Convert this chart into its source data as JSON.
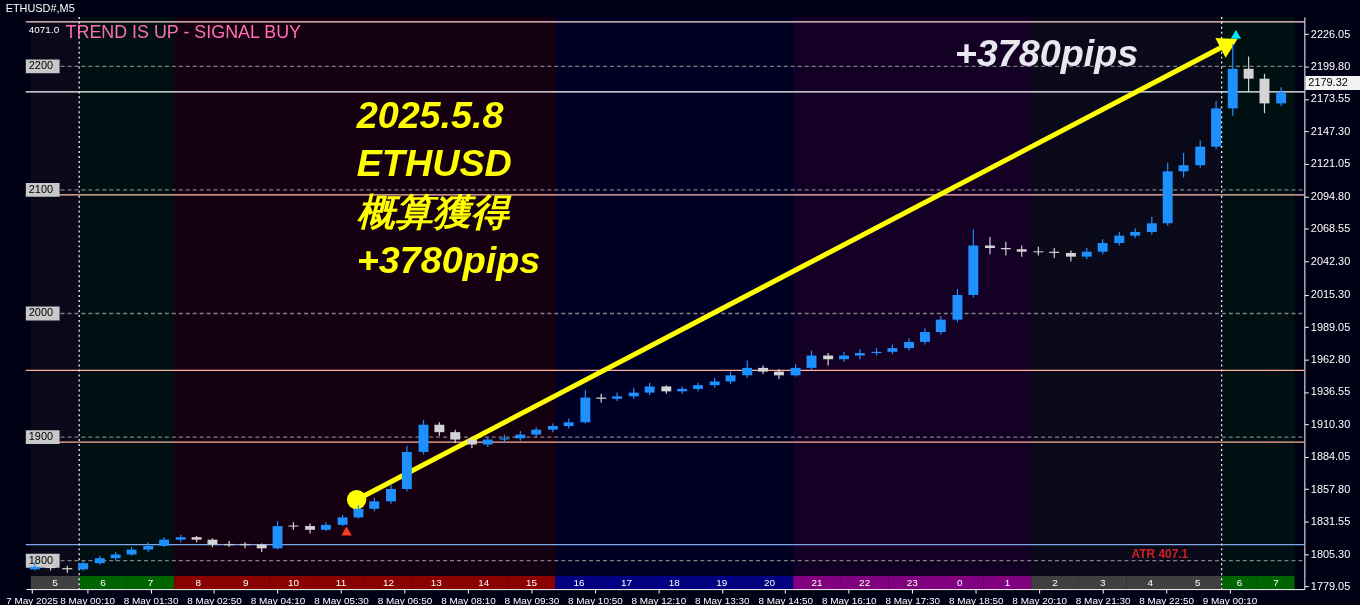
{
  "chart_data": {
    "type": "candlestick",
    "title": "ETHUSD#,M5",
    "x": [
      "2025-05-07T23:04",
      "2025-05-07T23:24",
      "2025-05-07T23:45",
      "2025-05-08T00:05",
      "2025-05-08T00:26",
      "2025-05-08T00:46",
      "2025-05-08T01:06",
      "2025-05-08T01:27",
      "2025-05-08T01:47",
      "2025-05-08T02:08",
      "2025-05-08T02:28",
      "2025-05-08T02:48",
      "2025-05-08T03:09",
      "2025-05-08T03:29",
      "2025-05-08T03:50",
      "2025-05-08T04:10",
      "2025-05-08T04:30",
      "2025-05-08T04:51",
      "2025-05-08T05:11",
      "2025-05-08T05:32",
      "2025-05-08T05:52",
      "2025-05-08T06:12",
      "2025-05-08T06:33",
      "2025-05-08T06:53",
      "2025-05-08T07:14",
      "2025-05-08T07:34",
      "2025-05-08T07:54",
      "2025-05-08T08:15",
      "2025-05-08T08:35",
      "2025-05-08T08:56",
      "2025-05-08T09:16",
      "2025-05-08T09:36",
      "2025-05-08T09:57",
      "2025-05-08T10:17",
      "2025-05-08T10:38",
      "2025-05-08T10:58",
      "2025-05-08T11:18",
      "2025-05-08T11:39",
      "2025-05-08T11:59",
      "2025-05-08T12:20",
      "2025-05-08T12:40",
      "2025-05-08T13:00",
      "2025-05-08T13:21",
      "2025-05-08T13:41",
      "2025-05-08T14:02",
      "2025-05-08T14:22",
      "2025-05-08T14:42",
      "2025-05-08T15:03",
      "2025-05-08T15:23",
      "2025-05-08T15:44",
      "2025-05-08T16:04",
      "2025-05-08T16:24",
      "2025-05-08T16:45",
      "2025-05-08T17:05",
      "2025-05-08T17:26",
      "2025-05-08T17:46",
      "2025-05-08T18:06",
      "2025-05-08T18:27",
      "2025-05-08T18:47",
      "2025-05-08T19:08",
      "2025-05-08T19:28",
      "2025-05-08T19:48",
      "2025-05-08T20:09",
      "2025-05-08T20:29",
      "2025-05-08T20:50",
      "2025-05-08T21:10",
      "2025-05-08T21:30",
      "2025-05-08T21:51",
      "2025-05-08T22:11",
      "2025-05-08T22:32",
      "2025-05-08T22:52",
      "2025-05-08T23:12",
      "2025-05-08T23:33",
      "2025-05-08T23:53",
      "2025-05-09T00:14",
      "2025-05-09T00:34",
      "2025-05-09T00:54",
      "2025-05-09T01:15"
    ],
    "ohlc": [
      [
        1793,
        1799,
        1792,
        1795
      ],
      [
        1795,
        1797,
        1792,
        1794
      ],
      [
        1794,
        1796,
        1790,
        1793
      ],
      [
        1793,
        1800,
        1792,
        1798
      ],
      [
        1798,
        1804,
        1797,
        1802
      ],
      [
        1802,
        1807,
        1800,
        1805
      ],
      [
        1805,
        1811,
        1804,
        1809
      ],
      [
        1809,
        1815,
        1807,
        1812
      ],
      [
        1812,
        1819,
        1811,
        1817
      ],
      [
        1817,
        1821,
        1815,
        1819
      ],
      [
        1819,
        1820,
        1815,
        1817
      ],
      [
        1817,
        1818,
        1811,
        1813
      ],
      [
        1813,
        1816,
        1811,
        1813
      ],
      [
        1813,
        1815,
        1810,
        1813
      ],
      [
        1813,
        1814,
        1807,
        1810
      ],
      [
        1810,
        1832,
        1809,
        1828
      ],
      [
        1828,
        1831,
        1825,
        1828
      ],
      [
        1828,
        1830,
        1822,
        1825
      ],
      [
        1825,
        1831,
        1824,
        1829
      ],
      [
        1829,
        1837,
        1828,
        1835
      ],
      [
        1835,
        1845,
        1834,
        1842
      ],
      [
        1842,
        1851,
        1840,
        1848
      ],
      [
        1848,
        1862,
        1846,
        1858
      ],
      [
        1858,
        1893,
        1856,
        1888
      ],
      [
        1888,
        1914,
        1886,
        1910
      ],
      [
        1910,
        1912,
        1901,
        1904
      ],
      [
        1904,
        1906,
        1895,
        1898
      ],
      [
        1898,
        1900,
        1891,
        1894
      ],
      [
        1894,
        1900,
        1892,
        1898
      ],
      [
        1898,
        1902,
        1895,
        1899
      ],
      [
        1899,
        1905,
        1897,
        1902
      ],
      [
        1902,
        1908,
        1900,
        1906
      ],
      [
        1906,
        1911,
        1904,
        1909
      ],
      [
        1909,
        1915,
        1907,
        1912
      ],
      [
        1912,
        1938,
        1911,
        1932
      ],
      [
        1932,
        1935,
        1928,
        1931
      ],
      [
        1931,
        1936,
        1929,
        1933
      ],
      [
        1933,
        1940,
        1931,
        1936
      ],
      [
        1936,
        1944,
        1934,
        1941
      ],
      [
        1941,
        1942,
        1935,
        1937
      ],
      [
        1937,
        1941,
        1935,
        1939
      ],
      [
        1939,
        1944,
        1937,
        1942
      ],
      [
        1942,
        1948,
        1940,
        1945
      ],
      [
        1945,
        1953,
        1943,
        1950
      ],
      [
        1950,
        1962,
        1948,
        1956
      ],
      [
        1956,
        1958,
        1951,
        1953
      ],
      [
        1953,
        1955,
        1947,
        1950
      ],
      [
        1950,
        1959,
        1949,
        1956
      ],
      [
        1956,
        1970,
        1954,
        1966
      ],
      [
        1966,
        1968,
        1958,
        1963
      ],
      [
        1963,
        1969,
        1961,
        1966
      ],
      [
        1966,
        1971,
        1963,
        1968
      ],
      [
        1968,
        1972,
        1966,
        1969
      ],
      [
        1969,
        1975,
        1967,
        1972
      ],
      [
        1972,
        1980,
        1970,
        1977
      ],
      [
        1977,
        1988,
        1975,
        1985
      ],
      [
        1985,
        1998,
        1983,
        1995
      ],
      [
        1995,
        2020,
        1993,
        2015
      ],
      [
        2015,
        2068,
        2013,
        2055
      ],
      [
        2055,
        2062,
        2048,
        2053
      ],
      [
        2053,
        2058,
        2047,
        2052
      ],
      [
        2052,
        2055,
        2046,
        2050
      ],
      [
        2050,
        2054,
        2047,
        2050
      ],
      [
        2050,
        2053,
        2045,
        2049
      ],
      [
        2049,
        2051,
        2042,
        2046
      ],
      [
        2046,
        2053,
        2044,
        2050
      ],
      [
        2050,
        2060,
        2048,
        2057
      ],
      [
        2057,
        2066,
        2055,
        2063
      ],
      [
        2063,
        2069,
        2061,
        2066
      ],
      [
        2066,
        2078,
        2064,
        2073
      ],
      [
        2073,
        2122,
        2071,
        2115
      ],
      [
        2115,
        2130,
        2110,
        2120
      ],
      [
        2120,
        2140,
        2118,
        2135
      ],
      [
        2135,
        2172,
        2133,
        2166
      ],
      [
        2166,
        2218,
        2160,
        2198
      ],
      [
        2198,
        2208,
        2180,
        2190
      ],
      [
        2190,
        2194,
        2162,
        2170
      ],
      [
        2170,
        2183,
        2168,
        2179
      ]
    ],
    "colors": [
      "#1e90ff",
      "#d3d3d3",
      "#d3d3d3",
      "#1e90ff",
      "#1e90ff",
      "#1e90ff",
      "#1e90ff",
      "#1e90ff",
      "#1e90ff",
      "#1e90ff",
      "#d3d3d3",
      "#d3d3d3",
      "#d3d3d3",
      "#d3d3d3",
      "#d3d3d3",
      "#1e90ff",
      "#d3d3d3",
      "#d3d3d3",
      "#1e90ff",
      "#1e90ff",
      "#1e90ff",
      "#1e90ff",
      "#1e90ff",
      "#1e90ff",
      "#1e90ff",
      "#d3d3d3",
      "#d3d3d3",
      "#d3d3d3",
      "#1e90ff",
      "#1e90ff",
      "#1e90ff",
      "#1e90ff",
      "#1e90ff",
      "#1e90ff",
      "#1e90ff",
      "#d3d3d3",
      "#1e90ff",
      "#1e90ff",
      "#1e90ff",
      "#d3d3d3",
      "#1e90ff",
      "#1e90ff",
      "#1e90ff",
      "#1e90ff",
      "#1e90ff",
      "#d3d3d3",
      "#d3d3d3",
      "#1e90ff",
      "#1e90ff",
      "#d3d3d3",
      "#1e90ff",
      "#1e90ff",
      "#1e90ff",
      "#1e90ff",
      "#1e90ff",
      "#1e90ff",
      "#1e90ff",
      "#1e90ff",
      "#1e90ff",
      "#d3d3d3",
      "#d3d3d3",
      "#d3d3d3",
      "#d3d3d3",
      "#d3d3d3",
      "#d3d3d3",
      "#1e90ff",
      "#1e90ff",
      "#1e90ff",
      "#1e90ff",
      "#1e90ff",
      "#1e90ff",
      "#1e90ff",
      "#1e90ff",
      "#1e90ff",
      "#1e90ff",
      "#d3d3d3",
      "#d3d3d3",
      "#1e90ff"
    ],
    "series": [
      {
        "type": "scatter",
        "color": "#ff3c1e",
        "marker": "triangle",
        "x": [
          "2025-05-08T05:37"
        ],
        "values": [
          1824
        ]
      },
      {
        "type": "scatter",
        "color": "#00e5ff",
        "marker": "triangle",
        "x": [
          "2025-05-09T00:18"
        ],
        "values": [
          2226
        ]
      }
    ],
    "xlim": [
      "2025-05-07T22:59",
      "2025-05-09T01:38"
    ],
    "ylim": [
      1777,
      2240
    ],
    "xticks": [
      {
        "value": "2025-05-07T23:00",
        "label": "7 May 2025"
      },
      {
        "value": "2025-05-08T00:10",
        "label": "8 May 00:10"
      },
      {
        "value": "2025-05-08T01:30",
        "label": "8 May 01:30"
      },
      {
        "value": "2025-05-08T02:50",
        "label": "8 May 02:50"
      },
      {
        "value": "2025-05-08T04:10",
        "label": "8 May 04:10"
      },
      {
        "value": "2025-05-08T05:30",
        "label": "8 May 05:30"
      },
      {
        "value": "2025-05-08T06:50",
        "label": "8 May 06:50"
      },
      {
        "value": "2025-05-08T08:10",
        "label": "8 May 08:10"
      },
      {
        "value": "2025-05-08T09:30",
        "label": "8 May 09:30"
      },
      {
        "value": "2025-05-08T10:50",
        "label": "8 May 10:50"
      },
      {
        "value": "2025-05-08T12:10",
        "label": "8 May 12:10"
      },
      {
        "value": "2025-05-08T13:30",
        "label": "8 May 13:30"
      },
      {
        "value": "2025-05-08T14:50",
        "label": "8 May 14:50"
      },
      {
        "value": "2025-05-08T16:10",
        "label": "8 May 16:10"
      },
      {
        "value": "2025-05-08T17:30",
        "label": "8 May 17:30"
      },
      {
        "value": "2025-05-08T18:50",
        "label": "8 May 18:50"
      },
      {
        "value": "2025-05-08T20:10",
        "label": "8 May 20:10"
      },
      {
        "value": "2025-05-08T21:30",
        "label": "8 May 21:30"
      },
      {
        "value": "2025-05-08T22:50",
        "label": "8 May 22:50"
      },
      {
        "value": "2025-05-09T00:10",
        "label": "9 May 00:10"
      }
    ],
    "yticks": [
      {
        "value": 1779.05,
        "label": "1779.05"
      },
      {
        "value": 1805.3,
        "label": "1805.30"
      },
      {
        "value": 1831.55,
        "label": "1831.55"
      },
      {
        "value": 1857.8,
        "label": "1857.80"
      },
      {
        "value": 1884.05,
        "label": "1884.05"
      },
      {
        "value": 1910.3,
        "label": "1910.30"
      },
      {
        "value": 1936.55,
        "label": "1936.55"
      },
      {
        "value": 1962.8,
        "label": "1962.80"
      },
      {
        "value": 1989.05,
        "label": "1989.05"
      },
      {
        "value": 2015.3,
        "label": "2015.30"
      },
      {
        "value": 2042.3,
        "label": "2042.30"
      },
      {
        "value": 2068.55,
        "label": "2068.55"
      },
      {
        "value": 2094.8,
        "label": "2094.80"
      },
      {
        "value": 2121.05,
        "label": "2121.05"
      },
      {
        "value": 2147.3,
        "label": "2147.30"
      },
      {
        "value": 2173.55,
        "label": "2173.55"
      },
      {
        "value": 2199.8,
        "label": "2199.80"
      },
      {
        "value": 2226.05,
        "label": "2226.05"
      }
    ],
    "grid": false,
    "ref_lines": [
      {
        "axis": "y",
        "value": 2236,
        "color": "#ffd9d9"
      },
      {
        "axis": "y",
        "value": 2179.32,
        "label": "2179.32",
        "color": "#ffffff"
      },
      {
        "axis": "y",
        "value": 2096,
        "color": "#ffc0b0"
      },
      {
        "axis": "y",
        "value": 1954,
        "color": "#ffb09a"
      },
      {
        "axis": "y",
        "value": 1896,
        "color": "#ffb09a"
      },
      {
        "axis": "y",
        "value": 1813,
        "color": "#7fa8e8"
      },
      {
        "axis": "y",
        "value": 2200,
        "label": "2200",
        "color": "#808080",
        "line_style": "dashed"
      },
      {
        "axis": "y",
        "value": 2100,
        "label": "2100",
        "color": "#808080",
        "line_style": "dashed"
      },
      {
        "axis": "y",
        "value": 2000,
        "label": "2000",
        "color": "#808080",
        "line_style": "dashed"
      },
      {
        "axis": "y",
        "value": 1900,
        "label": "1900",
        "color": "#808080",
        "line_style": "dashed"
      },
      {
        "axis": "y",
        "value": 1800,
        "label": "1800",
        "color": "#808080",
        "line_style": "dashed"
      },
      {
        "axis": "x",
        "value": "2025-05-08T00:00",
        "color": "#ffffff",
        "line_style": "dotted"
      },
      {
        "axis": "x",
        "value": "2025-05-09T00:00",
        "color": "#ffffff",
        "line_style": "dotted"
      }
    ],
    "bands": [
      {
        "axis": "x",
        "from": "2025-05-07T22:59",
        "to": "2025-05-08T00:00",
        "label": "5",
        "color": "#404040"
      },
      {
        "axis": "x",
        "from": "2025-05-08T00:00",
        "to": "2025-05-08T01:00",
        "label": "6",
        "color": "#006400"
      },
      {
        "axis": "x",
        "from": "2025-05-08T01:00",
        "to": "2025-05-08T02:00",
        "label": "7",
        "color": "#006400"
      },
      {
        "axis": "x",
        "from": "2025-05-08T02:00",
        "to": "2025-05-08T03:00",
        "label": "8",
        "color": "#8b0000"
      },
      {
        "axis": "x",
        "from": "2025-05-08T03:00",
        "to": "2025-05-08T04:00",
        "label": "9",
        "color": "#8b0000"
      },
      {
        "axis": "x",
        "from": "2025-05-08T04:00",
        "to": "2025-05-08T05:00",
        "label": "10",
        "color": "#8b0000"
      },
      {
        "axis": "x",
        "from": "2025-05-08T05:00",
        "to": "2025-05-08T06:00",
        "label": "11",
        "color": "#8b0000"
      },
      {
        "axis": "x",
        "from": "2025-05-08T06:00",
        "to": "2025-05-08T07:00",
        "label": "12",
        "color": "#8b0000"
      },
      {
        "axis": "x",
        "from": "2025-05-08T07:00",
        "to": "2025-05-08T08:00",
        "label": "13",
        "color": "#8b0000"
      },
      {
        "axis": "x",
        "from": "2025-05-08T08:00",
        "to": "2025-05-08T09:00",
        "label": "14",
        "color": "#8b0000"
      },
      {
        "axis": "x",
        "from": "2025-05-08T09:00",
        "to": "2025-05-08T10:00",
        "label": "15",
        "color": "#8b0000"
      },
      {
        "axis": "x",
        "from": "2025-05-08T10:00",
        "to": "2025-05-08T11:00",
        "label": "16",
        "color": "#000080"
      },
      {
        "axis": "x",
        "from": "2025-05-08T11:00",
        "to": "2025-05-08T12:00",
        "label": "17",
        "color": "#000080"
      },
      {
        "axis": "x",
        "from": "2025-05-08T12:00",
        "to": "2025-05-08T13:00",
        "label": "18",
        "color": "#000080"
      },
      {
        "axis": "x",
        "from": "2025-05-08T13:00",
        "to": "2025-05-08T14:00",
        "label": "19",
        "color": "#000080"
      },
      {
        "axis": "x",
        "from": "2025-05-08T14:00",
        "to": "2025-05-08T15:00",
        "label": "20",
        "color": "#000080"
      },
      {
        "axis": "x",
        "from": "2025-05-08T15:00",
        "to": "2025-05-08T16:00",
        "label": "21",
        "color": "#800080"
      },
      {
        "axis": "x",
        "from": "2025-05-08T16:00",
        "to": "2025-05-08T17:00",
        "label": "22",
        "color": "#800080"
      },
      {
        "axis": "x",
        "from": "2025-05-08T17:00",
        "to": "2025-05-08T18:00",
        "label": "23",
        "color": "#800080"
      },
      {
        "axis": "x",
        "from": "2025-05-08T18:00",
        "to": "2025-05-08T19:00",
        "label": "0",
        "color": "#800080"
      },
      {
        "axis": "x",
        "from": "2025-05-08T19:00",
        "to": "2025-05-08T20:00",
        "label": "1",
        "color": "#800080"
      },
      {
        "axis": "x",
        "from": "2025-05-08T20:00",
        "to": "2025-05-08T21:00",
        "label": "2",
        "color": "#404040"
      },
      {
        "axis": "x",
        "from": "2025-05-08T21:00",
        "to": "2025-05-08T22:00",
        "label": "3",
        "color": "#404040"
      },
      {
        "axis": "x",
        "from": "2025-05-08T22:00",
        "to": "2025-05-08T23:00",
        "label": "4",
        "color": "#404040"
      },
      {
        "axis": "x",
        "from": "2025-05-08T23:00",
        "to": "2025-05-09T00:00",
        "label": "5",
        "color": "#404040"
      },
      {
        "axis": "x",
        "from": "2025-05-09T00:00",
        "to": "2025-05-09T00:45",
        "label": "6",
        "color": "#006400"
      },
      {
        "axis": "x",
        "from": "2025-05-09T00:45",
        "to": "2025-05-09T01:32",
        "label": "7",
        "color": "#006400"
      }
    ],
    "annotations": [
      "4071.0",
      "TREND IS UP - SIGNAL BUY",
      "2025.5.8",
      "ETHUSD",
      "概算獲得",
      "+3780pips",
      "+3780pips",
      "ATR 407.1"
    ]
  }
}
